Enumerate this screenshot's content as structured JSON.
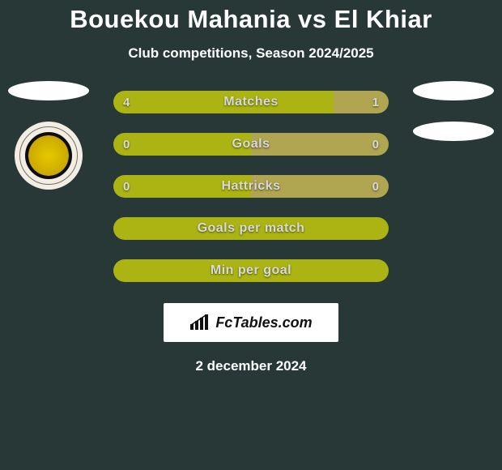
{
  "title": {
    "text": "Bouekou Mahania vs El Khiar",
    "fontsize": 31,
    "color": "#ffffff"
  },
  "subtitle": {
    "text": "Club competitions, Season 2024/2025",
    "fontsize": 17
  },
  "colors": {
    "background": "#283837",
    "player_left": "#abb413",
    "player_right": "#b0a550",
    "neutral": "#abb413",
    "bar_label": "#d9dad9"
  },
  "rows": [
    {
      "label": "Matches",
      "left_value": "4",
      "right_value": "1",
      "left_pct": 80,
      "right_pct": 20,
      "show_values": true
    },
    {
      "label": "Goals",
      "left_value": "0",
      "right_value": "0",
      "left_pct": 50,
      "right_pct": 50,
      "show_values": true
    },
    {
      "label": "Hattricks",
      "left_value": "0",
      "right_value": "0",
      "left_pct": 50,
      "right_pct": 50,
      "show_values": true
    },
    {
      "label": "Goals per match",
      "left_value": "",
      "right_value": "",
      "left_pct": 100,
      "right_pct": 0,
      "show_values": false
    },
    {
      "label": "Min per goal",
      "left_value": "",
      "right_value": "",
      "left_pct": 100,
      "right_pct": 0,
      "show_values": false
    }
  ],
  "branding": {
    "text": "FcTables.com"
  },
  "date": {
    "text": "2 december 2024"
  }
}
